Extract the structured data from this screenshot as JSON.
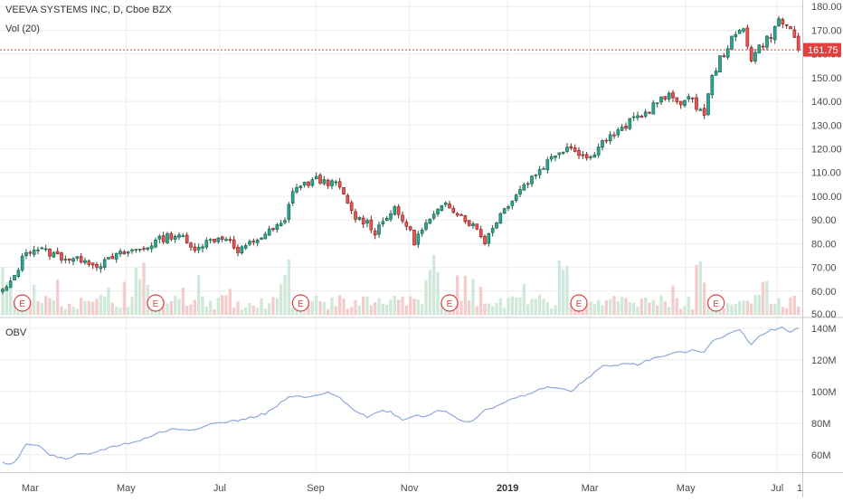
{
  "chart_data": [
    {
      "type": "candlestick",
      "title": "VEEVA SYSTEMS INC, D, Cboe BZX",
      "indicator_label": "Vol (20)",
      "ylim": [
        50,
        182
      ],
      "yticks": [
        50,
        60,
        70,
        80,
        90,
        100,
        110,
        120,
        130,
        140,
        150,
        160,
        170,
        180
      ],
      "ytick_labels": [
        "50.00",
        "60.00",
        "70.00",
        "80.00",
        "90.00",
        "100.00",
        "110.00",
        "120.00",
        "130.00",
        "140.00",
        "150.00",
        "160.00",
        "170.00",
        "180.00"
      ],
      "last_price": 161.75,
      "last_price_label": "161.75",
      "earnings_marker": "E",
      "earnings_count": 6,
      "price_path": [
        [
          0,
          60
        ],
        [
          2,
          63
        ],
        [
          4,
          70
        ],
        [
          6,
          77
        ],
        [
          9,
          78
        ],
        [
          12,
          76
        ],
        [
          16,
          74
        ],
        [
          19,
          73
        ],
        [
          21,
          74
        ],
        [
          23,
          71
        ],
        [
          26,
          72
        ],
        [
          29,
          75
        ],
        [
          33,
          77
        ],
        [
          36,
          78
        ],
        [
          39,
          81
        ],
        [
          42,
          83
        ],
        [
          45,
          84
        ],
        [
          48,
          78
        ],
        [
          51,
          80
        ],
        [
          54,
          82
        ],
        [
          57,
          83
        ],
        [
          60,
          76
        ],
        [
          63,
          80
        ],
        [
          66,
          83
        ],
        [
          69,
          86
        ],
        [
          72,
          89
        ],
        [
          74,
          103
        ],
        [
          77,
          105
        ],
        [
          80,
          107
        ],
        [
          83,
          106
        ],
        [
          86,
          104
        ],
        [
          88,
          96
        ],
        [
          90,
          91
        ],
        [
          93,
          89
        ],
        [
          95,
          85
        ],
        [
          98,
          92
        ],
        [
          100,
          94
        ],
        [
          103,
          88
        ],
        [
          105,
          81
        ],
        [
          108,
          88
        ],
        [
          111,
          93
        ],
        [
          113,
          98
        ],
        [
          116,
          93
        ],
        [
          119,
          89
        ],
        [
          121,
          86
        ],
        [
          123,
          81
        ],
        [
          126,
          90
        ],
        [
          129,
          97
        ],
        [
          132,
          103
        ],
        [
          135,
          108
        ],
        [
          138,
          113
        ],
        [
          141,
          118
        ],
        [
          144,
          121
        ],
        [
          146,
          120
        ],
        [
          148,
          117
        ],
        [
          150,
          116
        ],
        [
          152,
          122
        ],
        [
          155,
          125
        ],
        [
          158,
          128
        ],
        [
          161,
          133
        ],
        [
          164,
          135
        ],
        [
          167,
          140
        ],
        [
          170,
          142
        ],
        [
          173,
          140
        ],
        [
          175,
          141
        ],
        [
          177,
          138
        ],
        [
          179,
          135
        ],
        [
          181,
          150
        ],
        [
          183,
          158
        ],
        [
          186,
          166
        ],
        [
          189,
          171
        ],
        [
          191,
          158
        ],
        [
          193,
          163
        ],
        [
          196,
          168
        ],
        [
          198,
          174
        ],
        [
          200,
          172
        ],
        [
          202,
          168
        ],
        [
          203,
          161.75
        ]
      ]
    },
    {
      "type": "line",
      "title": "OBV",
      "ylim": [
        49,
        145
      ],
      "yticks": [
        60,
        80,
        100,
        120,
        140
      ],
      "ytick_labels": [
        "60M",
        "80M",
        "100M",
        "120M",
        "140M"
      ],
      "x_axis_labels": [
        "Mar",
        "May",
        "Jul",
        "Sep",
        "Nov",
        "2019",
        "Mar",
        "May",
        "Jul"
      ],
      "x_axis_extra": "1",
      "obv_path": [
        [
          0,
          55
        ],
        [
          2,
          54
        ],
        [
          4,
          58
        ],
        [
          6,
          67
        ],
        [
          8,
          66
        ],
        [
          10,
          65
        ],
        [
          12,
          60
        ],
        [
          15,
          58
        ],
        [
          17,
          57
        ],
        [
          19,
          60
        ],
        [
          22,
          60
        ],
        [
          25,
          63
        ],
        [
          28,
          65
        ],
        [
          31,
          67
        ],
        [
          34,
          68
        ],
        [
          37,
          71
        ],
        [
          40,
          74
        ],
        [
          43,
          76
        ],
        [
          46,
          76
        ],
        [
          49,
          76
        ],
        [
          52,
          79
        ],
        [
          55,
          80
        ],
        [
          58,
          81
        ],
        [
          61,
          82
        ],
        [
          64,
          84
        ],
        [
          67,
          86
        ],
        [
          69,
          89
        ],
        [
          71,
          93
        ],
        [
          73,
          96
        ],
        [
          75,
          97
        ],
        [
          78,
          96
        ],
        [
          81,
          98
        ],
        [
          83,
          99
        ],
        [
          86,
          96
        ],
        [
          88,
          92
        ],
        [
          90,
          88
        ],
        [
          93,
          84
        ],
        [
          95,
          86
        ],
        [
          97,
          88
        ],
        [
          99,
          87
        ],
        [
          102,
          82
        ],
        [
          104,
          84
        ],
        [
          106,
          85
        ],
        [
          108,
          84
        ],
        [
          111,
          88
        ],
        [
          113,
          88
        ],
        [
          116,
          83
        ],
        [
          118,
          81
        ],
        [
          120,
          81
        ],
        [
          123,
          88
        ],
        [
          126,
          91
        ],
        [
          129,
          94
        ],
        [
          132,
          97
        ],
        [
          135,
          99
        ],
        [
          138,
          102
        ],
        [
          141,
          103
        ],
        [
          143,
          101
        ],
        [
          145,
          100
        ],
        [
          148,
          106
        ],
        [
          151,
          112
        ],
        [
          153,
          116
        ],
        [
          156,
          116
        ],
        [
          159,
          118
        ],
        [
          162,
          117
        ],
        [
          165,
          120
        ],
        [
          168,
          122
        ],
        [
          171,
          124
        ],
        [
          174,
          125
        ],
        [
          177,
          126
        ],
        [
          179,
          125
        ],
        [
          181,
          132
        ],
        [
          183,
          134
        ],
        [
          186,
          137
        ],
        [
          188,
          139
        ],
        [
          190,
          133
        ],
        [
          191,
          130
        ],
        [
          193,
          135
        ],
        [
          196,
          139
        ],
        [
          199,
          140
        ],
        [
          201,
          138
        ],
        [
          203,
          140
        ]
      ]
    }
  ],
  "colors": {
    "up": "#26a69a",
    "up_dark": "#1e5a3c",
    "down": "#ef5350",
    "down_dark": "#7a2222",
    "vol_up": "#cfe8da",
    "vol_down": "#f4cccc",
    "obv_line": "#8fa8d8",
    "price_line": "#e04040",
    "grid": "#ececec",
    "earnings": "#e04040"
  }
}
